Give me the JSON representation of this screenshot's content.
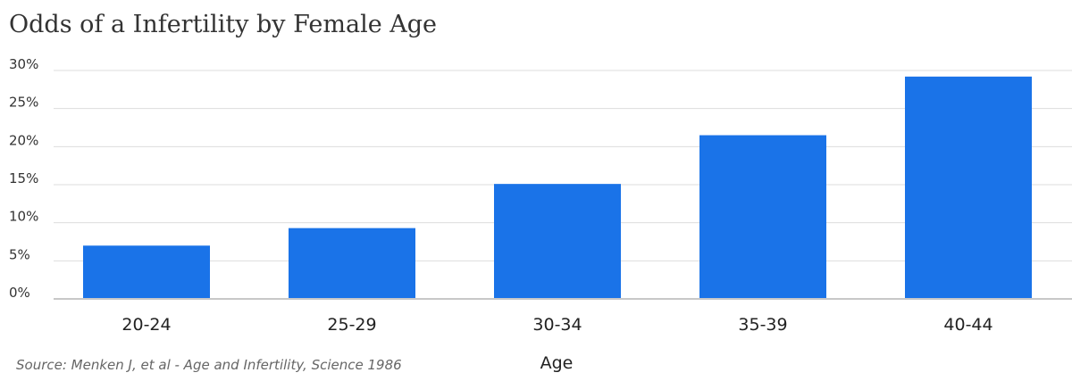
{
  "chart_data": {
    "type": "bar",
    "title": "Odds of a Infertility by Female Age",
    "xlabel": "Age",
    "ylabel": "",
    "categories": [
      "20-24",
      "25-29",
      "30-34",
      "35-39",
      "40-44"
    ],
    "values": [
      7,
      9.3,
      15.1,
      21.5,
      29.2
    ],
    "ylim": [
      0,
      30
    ],
    "yticks": [
      "0%",
      "5%",
      "10%",
      "15%",
      "20%",
      "25%",
      "30%"
    ],
    "grid": true,
    "bar_color": "#1a73e8",
    "source": "Source: Menken J, et al - Age and Infertility, Science 1986"
  }
}
